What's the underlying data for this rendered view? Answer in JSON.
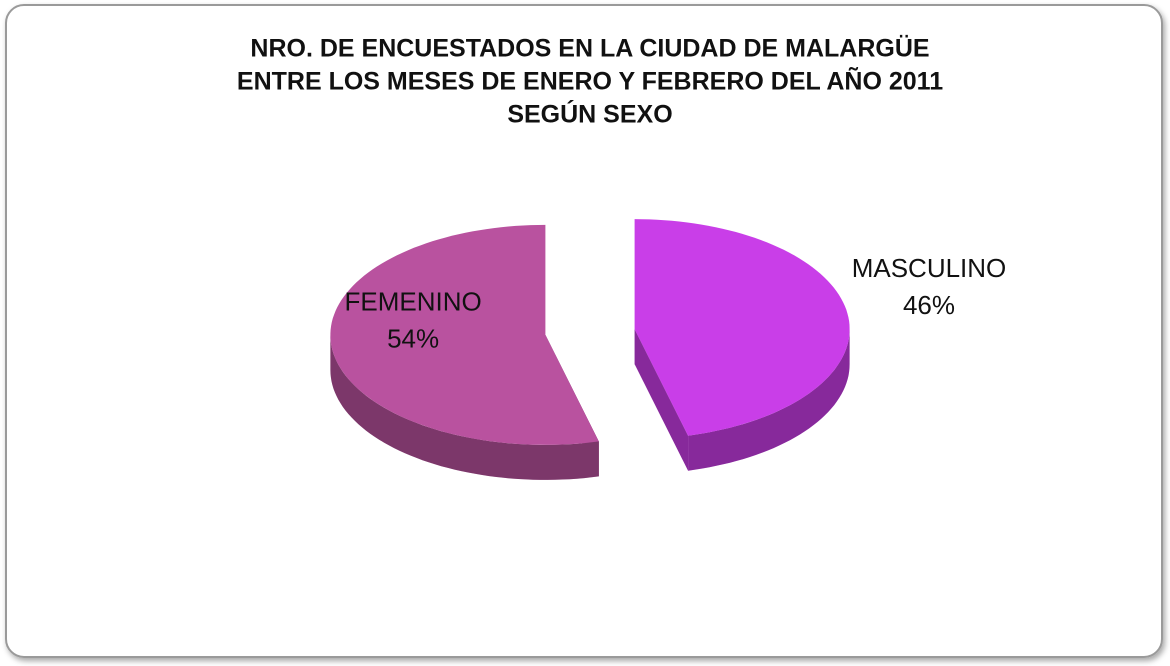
{
  "chart_data": {
    "type": "pie",
    "title": [
      "NRO. DE ENCUESTADOS EN LA CIUDAD DE MALARGÜE",
      "ENTRE LOS MESES DE ENERO Y FEBRERO DEL AÑO 2011",
      "SEGÚN SEXO"
    ],
    "categories": [
      "MASCULINO",
      "FEMENINO"
    ],
    "values": [
      46,
      54
    ],
    "value_labels": [
      "46%",
      "54%"
    ],
    "colors": [
      "#c93ee8",
      "#b9529f"
    ]
  }
}
